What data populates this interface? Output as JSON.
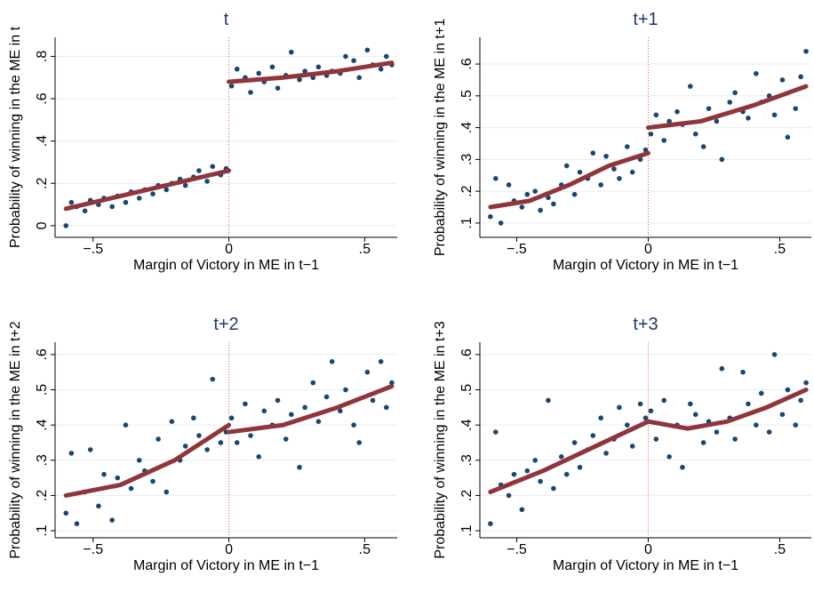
{
  "chart_data": [
    {
      "type": "scatter",
      "title": "t",
      "xlabel": "Margin of Victory in ME in t−1",
      "ylabel": "Probability of winning in the ME in t",
      "xlim": [
        -0.64,
        0.62
      ],
      "ylim": [
        -0.055,
        0.89
      ],
      "xticks": [
        {
          "value": -0.5,
          "label": "−.5"
        },
        0,
        {
          "value": 0.5,
          "label": ".5"
        }
      ],
      "yticks": [
        0,
        {
          "value": 0.2,
          "label": ".2"
        },
        {
          "value": 0.4,
          "label": ".4"
        },
        {
          "value": 0.6,
          "label": ".6"
        },
        {
          "value": 0.8,
          "label": ".8"
        }
      ],
      "grid": true,
      "cutoff": 0,
      "points": {
        "color": "#1a476f",
        "x": [
          -0.6,
          -0.58,
          -0.56,
          -0.53,
          -0.51,
          -0.48,
          -0.46,
          -0.43,
          -0.41,
          -0.38,
          -0.36,
          -0.33,
          -0.31,
          -0.28,
          -0.26,
          -0.23,
          -0.21,
          -0.18,
          -0.16,
          -0.13,
          -0.11,
          -0.08,
          -0.06,
          -0.03,
          -0.01,
          0.01,
          0.03,
          0.06,
          0.08,
          0.11,
          0.13,
          0.16,
          0.18,
          0.21,
          0.23,
          0.26,
          0.28,
          0.31,
          0.33,
          0.36,
          0.38,
          0.41,
          0.43,
          0.46,
          0.48,
          0.51,
          0.53,
          0.56,
          0.58,
          0.6
        ],
        "y": [
          0.0,
          0.11,
          0.09,
          0.07,
          0.12,
          0.1,
          0.13,
          0.09,
          0.14,
          0.11,
          0.16,
          0.13,
          0.17,
          0.15,
          0.19,
          0.17,
          0.2,
          0.22,
          0.19,
          0.23,
          0.26,
          0.21,
          0.28,
          0.24,
          0.27,
          0.66,
          0.74,
          0.7,
          0.63,
          0.72,
          0.68,
          0.75,
          0.65,
          0.71,
          0.82,
          0.69,
          0.73,
          0.7,
          0.75,
          0.71,
          0.73,
          0.72,
          0.8,
          0.78,
          0.7,
          0.83,
          0.76,
          0.74,
          0.8,
          0.76
        ]
      },
      "fits": [
        {
          "color": "#90353b",
          "x": [
            -0.6,
            -0.4,
            -0.2,
            0
          ],
          "y": [
            0.08,
            0.14,
            0.2,
            0.26
          ]
        },
        {
          "color": "#90353b",
          "x": [
            0,
            0.2,
            0.4,
            0.6
          ],
          "y": [
            0.68,
            0.7,
            0.73,
            0.77
          ]
        }
      ]
    },
    {
      "type": "scatter",
      "title": "t+1",
      "xlabel": "Margin of Victory in ME in t−1",
      "ylabel": "Probability of winning in the ME in t+1",
      "xlim": [
        -0.64,
        0.62
      ],
      "ylim": [
        0.055,
        0.684
      ],
      "xticks": [
        {
          "value": -0.5,
          "label": "−.5"
        },
        0,
        {
          "value": 0.5,
          "label": ".5"
        }
      ],
      "yticks": [
        {
          "value": 0.1,
          "label": ".1"
        },
        {
          "value": 0.2,
          "label": ".2"
        },
        {
          "value": 0.3,
          "label": ".3"
        },
        {
          "value": 0.4,
          "label": ".4"
        },
        {
          "value": 0.5,
          "label": ".5"
        },
        {
          "value": 0.6,
          "label": ".6"
        }
      ],
      "grid": true,
      "cutoff": 0,
      "points": {
        "color": "#1a476f",
        "x": [
          -0.6,
          -0.58,
          -0.56,
          -0.53,
          -0.51,
          -0.48,
          -0.46,
          -0.43,
          -0.41,
          -0.38,
          -0.36,
          -0.33,
          -0.31,
          -0.28,
          -0.26,
          -0.23,
          -0.21,
          -0.18,
          -0.16,
          -0.13,
          -0.11,
          -0.08,
          -0.06,
          -0.03,
          -0.01,
          0.01,
          0.03,
          0.06,
          0.08,
          0.11,
          0.13,
          0.16,
          0.18,
          0.21,
          0.23,
          0.26,
          0.28,
          0.31,
          0.33,
          0.36,
          0.38,
          0.41,
          0.43,
          0.46,
          0.48,
          0.51,
          0.53,
          0.56,
          0.58,
          0.6
        ],
        "y": [
          0.12,
          0.24,
          0.1,
          0.22,
          0.17,
          0.15,
          0.19,
          0.2,
          0.14,
          0.18,
          0.16,
          0.22,
          0.28,
          0.19,
          0.26,
          0.24,
          0.32,
          0.22,
          0.31,
          0.27,
          0.24,
          0.34,
          0.26,
          0.3,
          0.33,
          0.38,
          0.44,
          0.36,
          0.42,
          0.45,
          0.41,
          0.53,
          0.38,
          0.34,
          0.46,
          0.42,
          0.3,
          0.48,
          0.51,
          0.45,
          0.43,
          0.57,
          0.48,
          0.5,
          0.44,
          0.55,
          0.37,
          0.46,
          0.56,
          0.64
        ]
      },
      "fits": [
        {
          "color": "#90353b",
          "x": [
            -0.6,
            -0.45,
            -0.3,
            -0.15,
            0
          ],
          "y": [
            0.15,
            0.17,
            0.22,
            0.28,
            0.32
          ]
        },
        {
          "color": "#90353b",
          "x": [
            0,
            0.2,
            0.4,
            0.6
          ],
          "y": [
            0.4,
            0.42,
            0.47,
            0.53
          ]
        }
      ]
    },
    {
      "type": "scatter",
      "title": "t+2",
      "xlabel": "Margin of Victory in ME in t−1",
      "ylabel": "Probability of winning in the ME in t+2",
      "xlim": [
        -0.64,
        0.62
      ],
      "ylim": [
        0.08,
        0.635
      ],
      "xticks": [
        {
          "value": -0.5,
          "label": "−.5"
        },
        0,
        {
          "value": 0.5,
          "label": ".5"
        }
      ],
      "yticks": [
        {
          "value": 0.1,
          "label": ".1"
        },
        {
          "value": 0.2,
          "label": ".2"
        },
        {
          "value": 0.3,
          "label": ".3"
        },
        {
          "value": 0.4,
          "label": ".4"
        },
        {
          "value": 0.5,
          "label": ".5"
        },
        {
          "value": 0.6,
          "label": ".6"
        }
      ],
      "grid": true,
      "cutoff": 0,
      "points": {
        "color": "#1a476f",
        "x": [
          -0.6,
          -0.58,
          -0.56,
          -0.53,
          -0.51,
          -0.48,
          -0.46,
          -0.43,
          -0.41,
          -0.38,
          -0.36,
          -0.33,
          -0.31,
          -0.28,
          -0.26,
          -0.23,
          -0.21,
          -0.18,
          -0.16,
          -0.13,
          -0.11,
          -0.08,
          -0.06,
          -0.03,
          -0.01,
          0.01,
          0.03,
          0.06,
          0.08,
          0.11,
          0.13,
          0.16,
          0.18,
          0.21,
          0.23,
          0.26,
          0.28,
          0.31,
          0.33,
          0.36,
          0.38,
          0.41,
          0.43,
          0.46,
          0.48,
          0.51,
          0.53,
          0.56,
          0.58,
          0.6
        ],
        "y": [
          0.15,
          0.32,
          0.12,
          0.21,
          0.33,
          0.17,
          0.26,
          0.13,
          0.25,
          0.4,
          0.22,
          0.3,
          0.27,
          0.24,
          0.36,
          0.21,
          0.41,
          0.3,
          0.34,
          0.42,
          0.37,
          0.33,
          0.53,
          0.35,
          0.38,
          0.42,
          0.35,
          0.46,
          0.37,
          0.31,
          0.44,
          0.4,
          0.47,
          0.36,
          0.43,
          0.28,
          0.45,
          0.52,
          0.41,
          0.48,
          0.58,
          0.44,
          0.5,
          0.4,
          0.35,
          0.55,
          0.47,
          0.58,
          0.45,
          0.52
        ]
      },
      "fits": [
        {
          "color": "#90353b",
          "x": [
            -0.6,
            -0.4,
            -0.2,
            0
          ],
          "y": [
            0.2,
            0.23,
            0.3,
            0.4
          ]
        },
        {
          "color": "#90353b",
          "x": [
            0,
            0.2,
            0.4,
            0.6
          ],
          "y": [
            0.38,
            0.4,
            0.45,
            0.51
          ]
        }
      ]
    },
    {
      "type": "scatter",
      "title": "t+3",
      "xlabel": "Margin of Victory in ME in t−1",
      "ylabel": "Probability of winning in the ME in t+3",
      "xlim": [
        -0.64,
        0.62
      ],
      "ylim": [
        0.08,
        0.635
      ],
      "xticks": [
        {
          "value": -0.5,
          "label": "−.5"
        },
        0,
        {
          "value": 0.5,
          "label": ".5"
        }
      ],
      "yticks": [
        {
          "value": 0.1,
          "label": ".1"
        },
        {
          "value": 0.2,
          "label": ".2"
        },
        {
          "value": 0.3,
          "label": ".3"
        },
        {
          "value": 0.4,
          "label": ".4"
        },
        {
          "value": 0.5,
          "label": ".5"
        },
        {
          "value": 0.6,
          "label": ".6"
        }
      ],
      "grid": true,
      "cutoff": 0,
      "points": {
        "color": "#1a476f",
        "x": [
          -0.6,
          -0.58,
          -0.56,
          -0.53,
          -0.51,
          -0.48,
          -0.46,
          -0.43,
          -0.41,
          -0.38,
          -0.36,
          -0.33,
          -0.31,
          -0.28,
          -0.26,
          -0.23,
          -0.21,
          -0.18,
          -0.16,
          -0.13,
          -0.11,
          -0.08,
          -0.06,
          -0.03,
          -0.01,
          0.01,
          0.03,
          0.06,
          0.08,
          0.11,
          0.13,
          0.16,
          0.18,
          0.21,
          0.23,
          0.26,
          0.28,
          0.31,
          0.33,
          0.36,
          0.38,
          0.41,
          0.43,
          0.46,
          0.48,
          0.51,
          0.53,
          0.56,
          0.58,
          0.6
        ],
        "y": [
          0.12,
          0.38,
          0.23,
          0.2,
          0.26,
          0.16,
          0.27,
          0.3,
          0.24,
          0.47,
          0.22,
          0.31,
          0.26,
          0.35,
          0.28,
          0.33,
          0.37,
          0.42,
          0.32,
          0.36,
          0.45,
          0.4,
          0.34,
          0.46,
          0.42,
          0.44,
          0.36,
          0.47,
          0.31,
          0.4,
          0.28,
          0.46,
          0.43,
          0.35,
          0.41,
          0.38,
          0.56,
          0.42,
          0.36,
          0.55,
          0.46,
          0.4,
          0.49,
          0.38,
          0.6,
          0.43,
          0.5,
          0.4,
          0.47,
          0.52
        ]
      },
      "fits": [
        {
          "color": "#90353b",
          "x": [
            -0.6,
            -0.4,
            -0.2,
            0
          ],
          "y": [
            0.21,
            0.27,
            0.34,
            0.41
          ]
        },
        {
          "color": "#90353b",
          "x": [
            0,
            0.15,
            0.3,
            0.45,
            0.6
          ],
          "y": [
            0.41,
            0.39,
            0.41,
            0.45,
            0.5
          ]
        }
      ]
    }
  ]
}
